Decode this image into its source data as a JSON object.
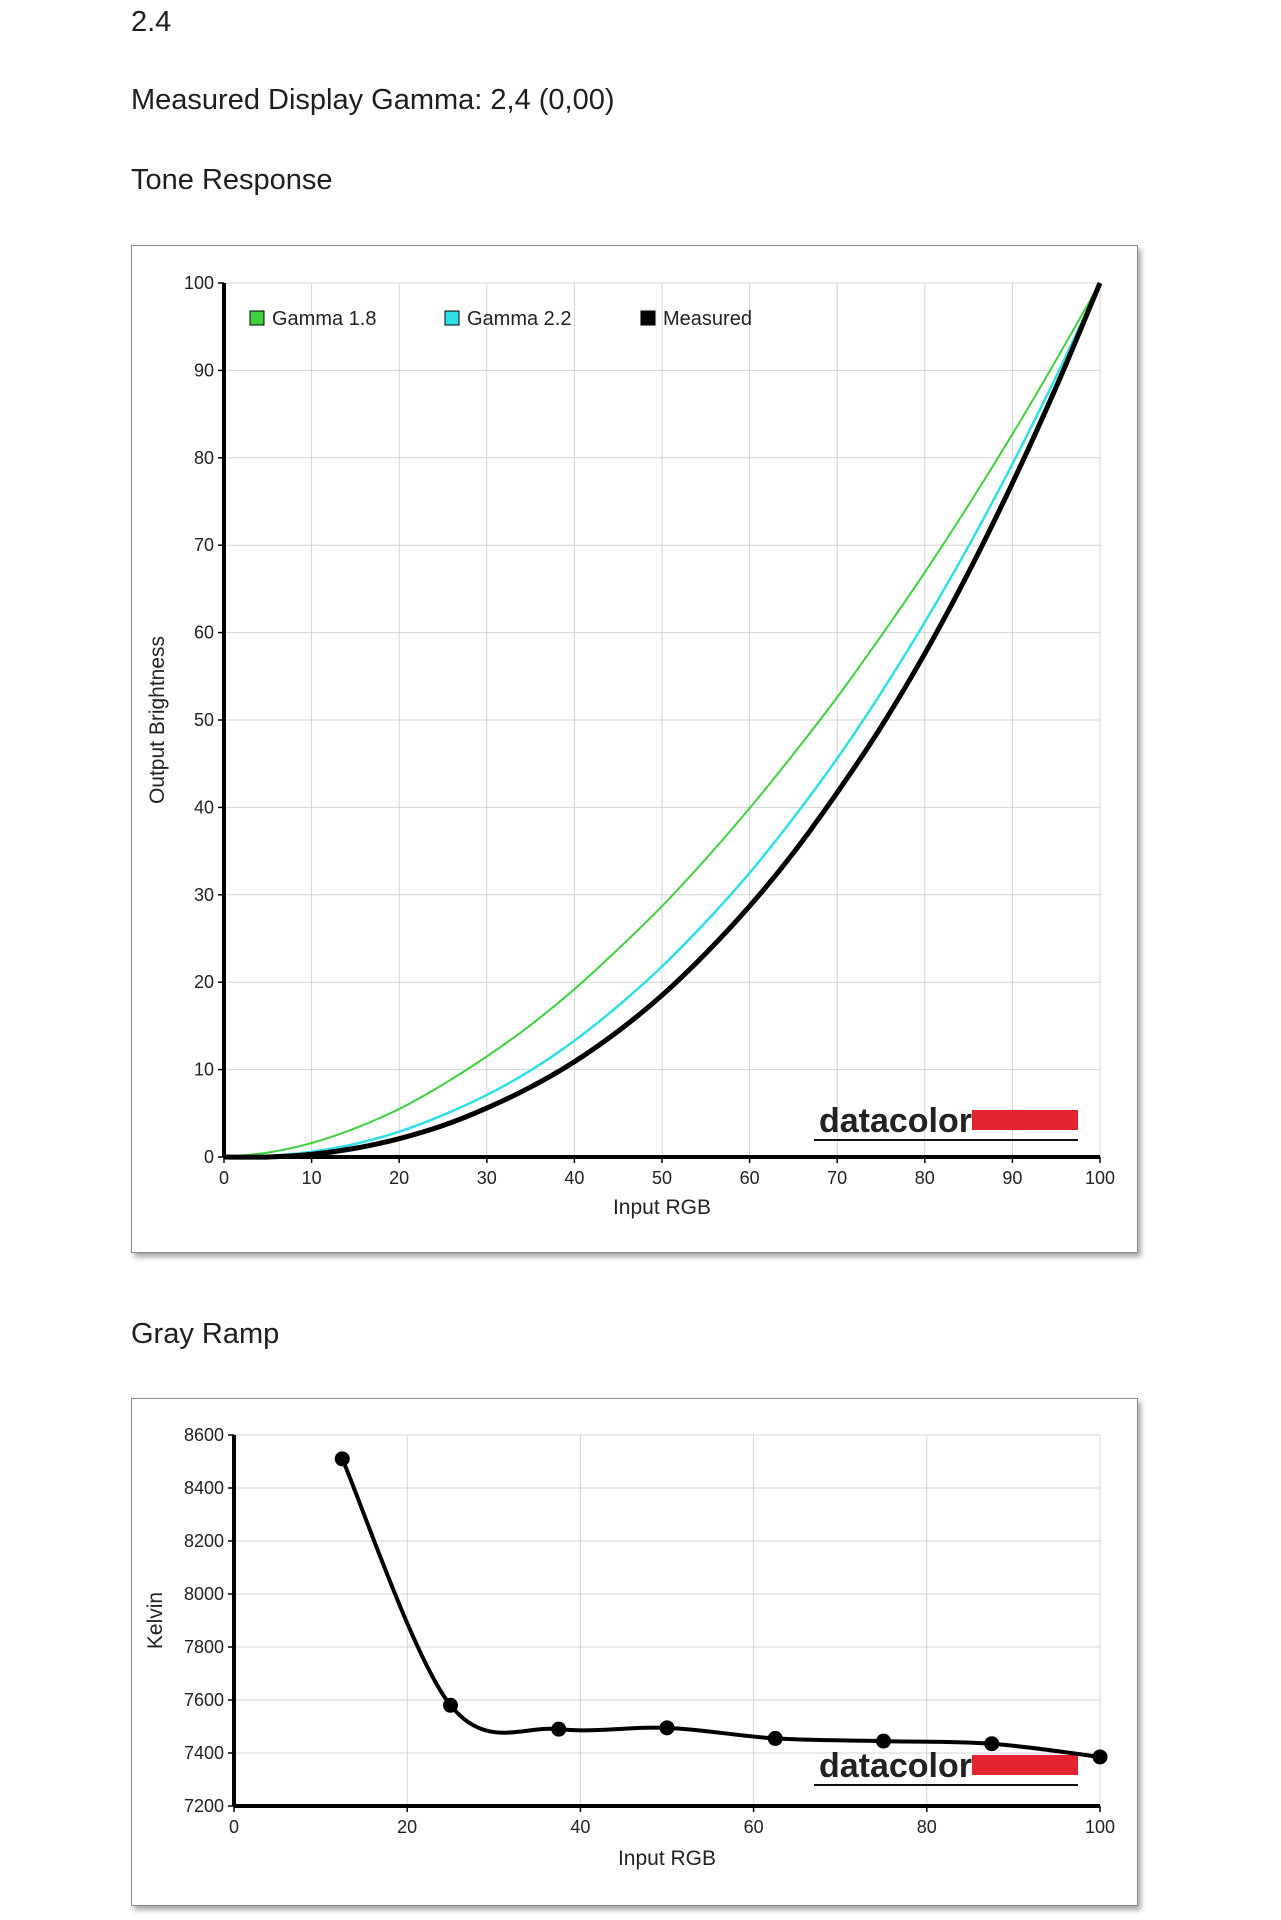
{
  "header": {
    "top_value": "2.4",
    "measured_gamma": "Measured Display Gamma: 2,4 (0,00)"
  },
  "logo_text": "datacolor",
  "colors": {
    "gamma_18": "#3fd13f",
    "gamma_22": "#2ee0e6",
    "measured": "#000000",
    "grid": "#d4d4d4",
    "logo_bar": "#e3232d"
  },
  "chart_data": [
    {
      "type": "line",
      "title": "Tone Response",
      "xlabel": "Input RGB",
      "ylabel": "Output Brightness",
      "xlim": [
        0,
        100
      ],
      "ylim": [
        0,
        100
      ],
      "xticks": [
        0,
        10,
        20,
        30,
        40,
        50,
        60,
        70,
        80,
        90,
        100
      ],
      "yticks": [
        0,
        10,
        20,
        30,
        40,
        50,
        60,
        70,
        80,
        90,
        100
      ],
      "grid": true,
      "legend_position": "top-left",
      "x": [
        0,
        5,
        10,
        15,
        20,
        25,
        30,
        35,
        40,
        45,
        50,
        55,
        60,
        65,
        70,
        75,
        80,
        85,
        90,
        95,
        100
      ],
      "series": [
        {
          "name": "Gamma 1.8",
          "color": "#3fd13f",
          "marker": "square",
          "values": [
            0,
            0.5,
            1.6,
            3.3,
            5.5,
            8.3,
            11.5,
            15.1,
            19.2,
            23.8,
            28.7,
            34.1,
            39.9,
            46.1,
            52.6,
            59.6,
            66.9,
            74.6,
            82.7,
            91.2,
            100
          ]
        },
        {
          "name": "Gamma 2.2",
          "color": "#2ee0e6",
          "marker": "square",
          "values": [
            0,
            0.1,
            0.6,
            1.5,
            2.9,
            4.8,
            7.1,
            9.9,
            13.3,
            17.3,
            21.8,
            26.9,
            32.5,
            38.8,
            45.6,
            53.1,
            61.2,
            69.9,
            79.3,
            89.3,
            100
          ]
        },
        {
          "name": "Measured",
          "color": "#000000",
          "marker": "square",
          "values": [
            0,
            0,
            0.3,
            1.0,
            2.1,
            3.6,
            5.6,
            8.0,
            10.9,
            14.4,
            18.5,
            23.3,
            28.7,
            34.8,
            41.7,
            49.2,
            57.6,
            66.9,
            77.1,
            88.1,
            100
          ]
        }
      ]
    },
    {
      "type": "line",
      "title": "Gray Ramp",
      "xlabel": "Input RGB",
      "ylabel": "Kelvin",
      "xlim": [
        0,
        100
      ],
      "ylim": [
        7200,
        8600
      ],
      "xticks": [
        0,
        20,
        40,
        60,
        80,
        100
      ],
      "yticks": [
        7200,
        7400,
        7600,
        7800,
        8000,
        8200,
        8400,
        8600
      ],
      "grid": true,
      "series": [
        {
          "color": "#000000",
          "points": [
            {
              "x": 12.5,
              "y": 8510
            },
            {
              "x": 25,
              "y": 7580
            },
            {
              "x": 37.5,
              "y": 7490
            },
            {
              "x": 50,
              "y": 7495
            },
            {
              "x": 62.5,
              "y": 7455
            },
            {
              "x": 75,
              "y": 7445
            },
            {
              "x": 87.5,
              "y": 7435
            },
            {
              "x": 100,
              "y": 7385
            }
          ]
        }
      ]
    }
  ]
}
